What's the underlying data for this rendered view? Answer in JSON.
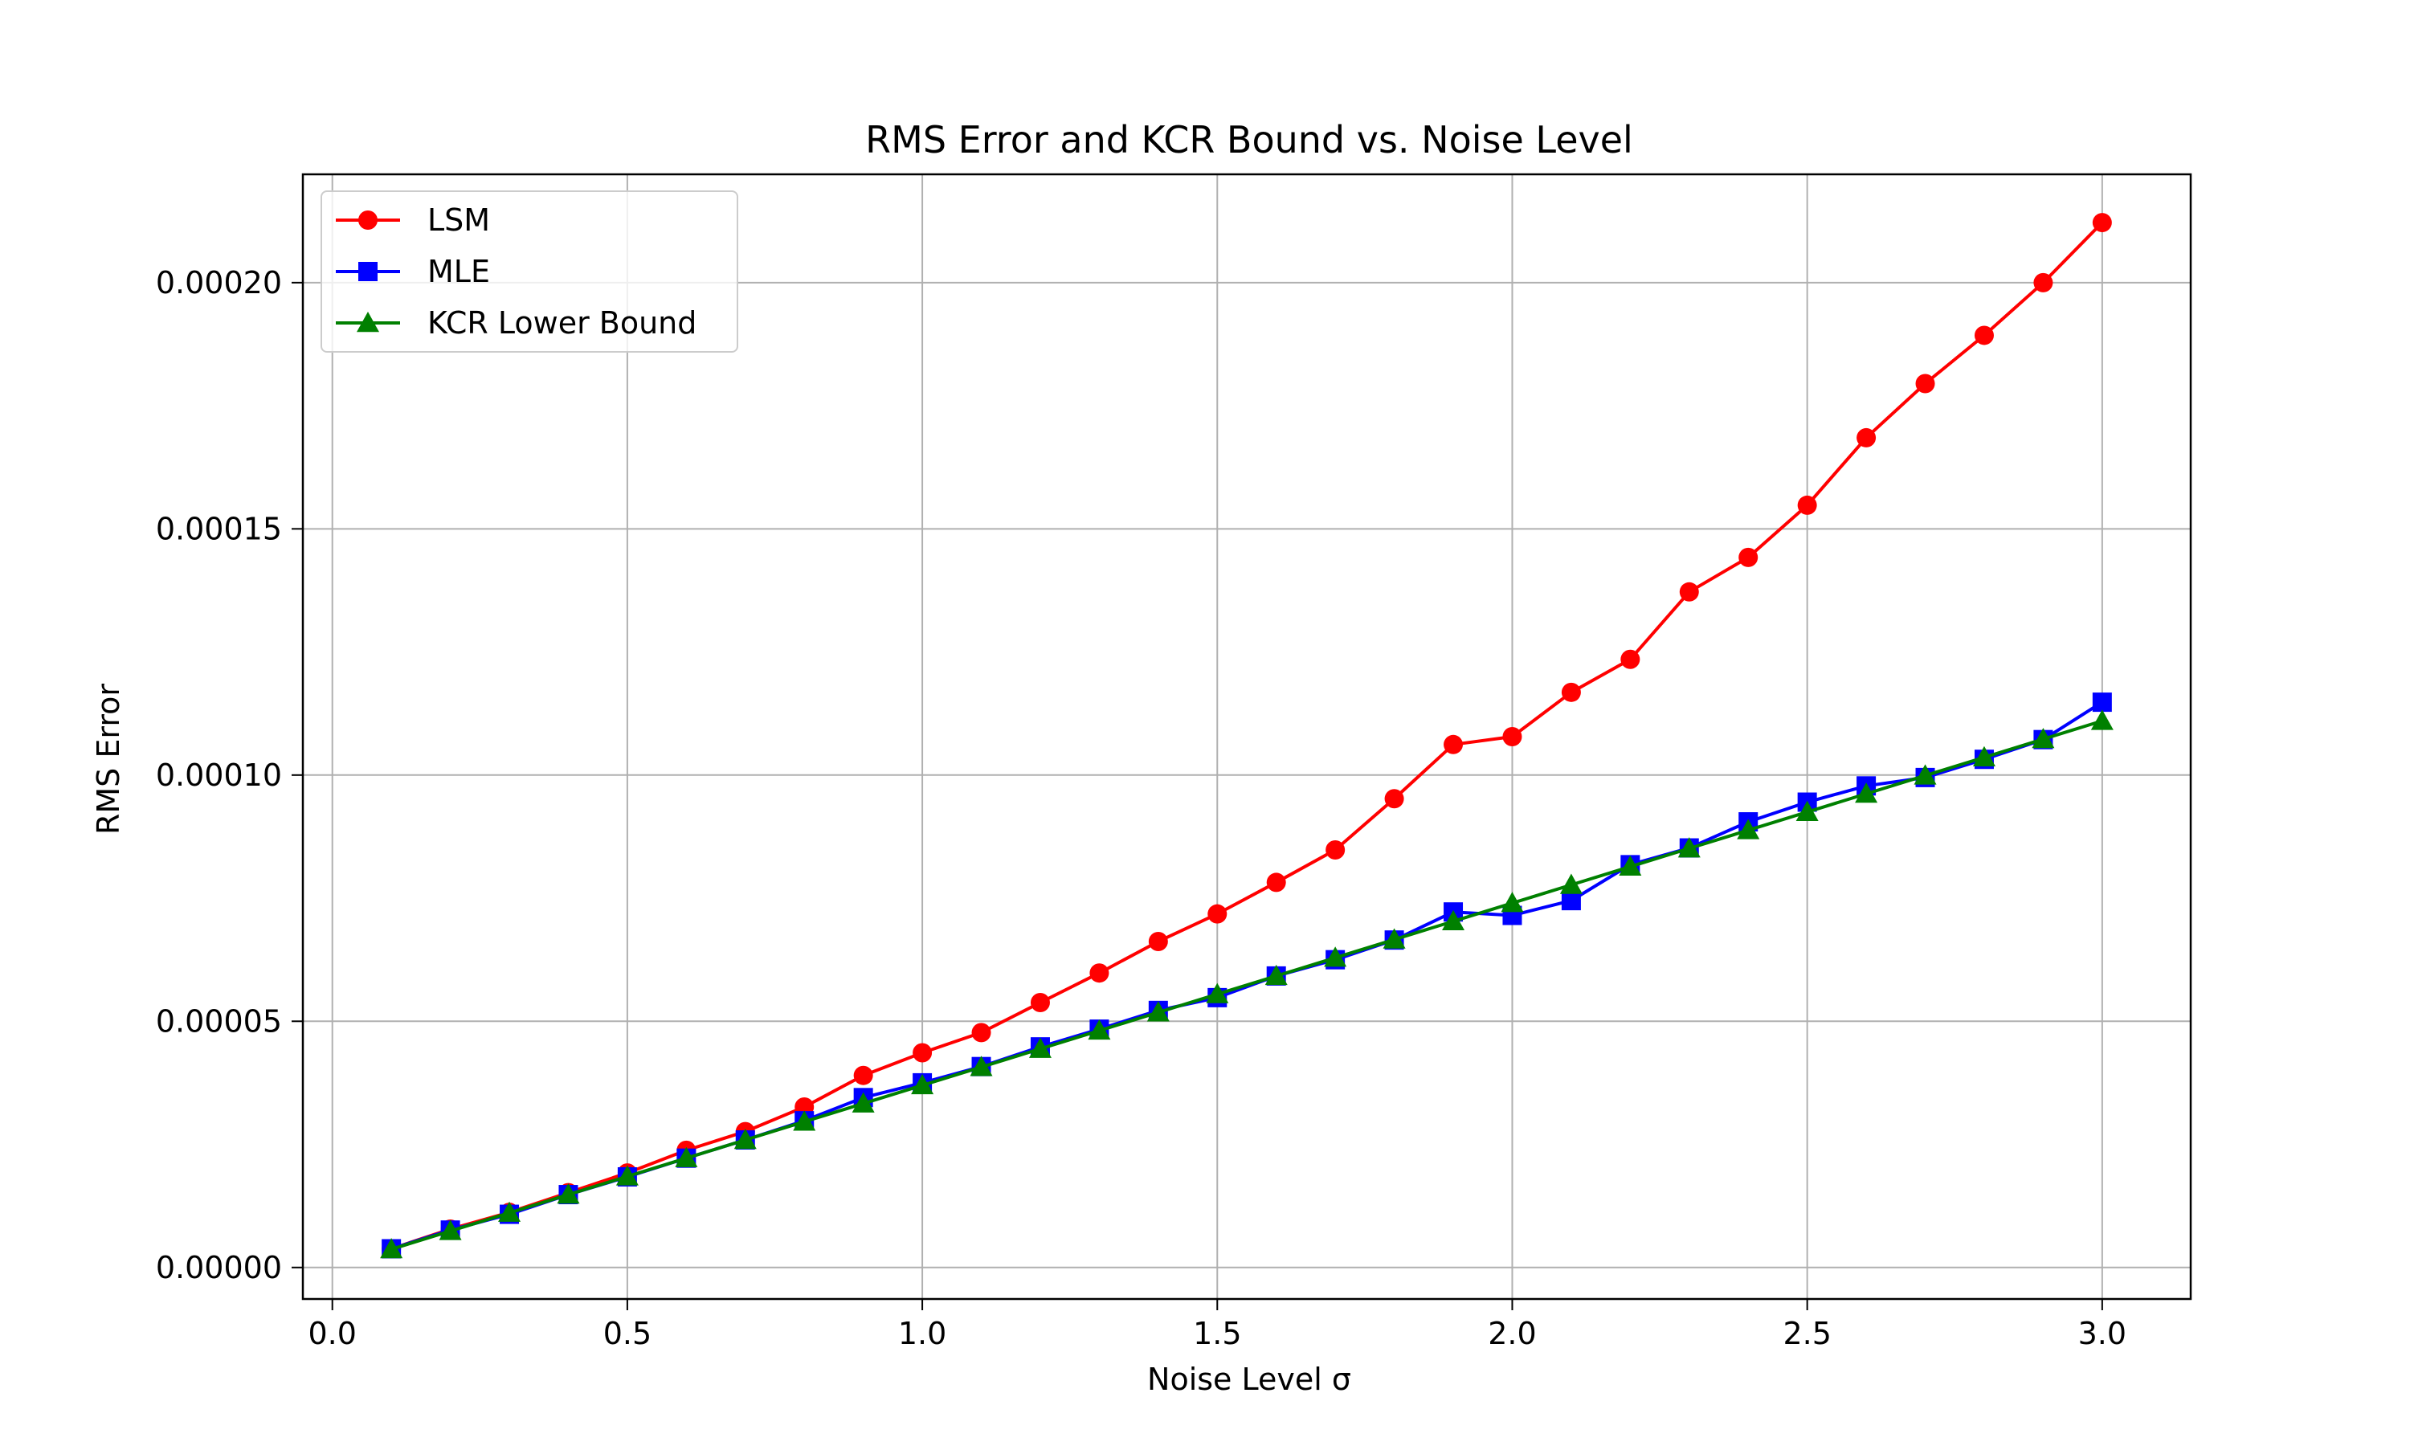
{
  "chart_data": {
    "type": "line",
    "title": "RMS Error and KCR Bound vs. Noise Level",
    "xlabel": "Noise Level σ",
    "ylabel": "RMS Error",
    "xlim": [
      -0.05,
      3.15
    ],
    "ylim": [
      -6.4e-06,
      0.000222
    ],
    "xticks": [
      0.0,
      0.5,
      1.0,
      1.5,
      2.0,
      2.5,
      3.0
    ],
    "xtick_labels": [
      "0.0",
      "0.5",
      "1.0",
      "1.5",
      "2.0",
      "2.5",
      "3.0"
    ],
    "yticks": [
      0.0,
      5e-05,
      0.0001,
      0.00015,
      0.0002
    ],
    "ytick_labels": [
      "0.00000",
      "0.00005",
      "0.00010",
      "0.00015",
      "0.00020"
    ],
    "grid": true,
    "legend_position": "top-left",
    "x": [
      0.1,
      0.2,
      0.3,
      0.4,
      0.5,
      0.6,
      0.7,
      0.8,
      0.9,
      1.0,
      1.1,
      1.2,
      1.3,
      1.4,
      1.5,
      1.6,
      1.7,
      1.8,
      1.9,
      2.0,
      2.1,
      2.2,
      2.3,
      2.4,
      2.5,
      2.6,
      2.7,
      2.8,
      2.9,
      3.0
    ],
    "series": [
      {
        "name": "LSM",
        "color": "#ff0000",
        "marker": "circle",
        "values": [
          3.8e-06,
          7.8e-06,
          1.12e-05,
          1.52e-05,
          1.92e-05,
          2.38e-05,
          2.76e-05,
          3.26e-05,
          3.9e-05,
          4.36e-05,
          4.77e-05,
          5.38e-05,
          5.98e-05,
          6.62e-05,
          7.18e-05,
          7.82e-05,
          8.48e-05,
          9.52e-05,
          0.0001062,
          0.0001078,
          0.0001168,
          0.0001235,
          0.0001372,
          0.0001442,
          0.0001548,
          0.0001685,
          0.0001795,
          0.0001893,
          0.0002,
          0.0002122
        ]
      },
      {
        "name": "MLE",
        "color": "#0000ff",
        "marker": "square",
        "values": [
          3.8e-06,
          7.6e-06,
          1.08e-05,
          1.48e-05,
          1.84e-05,
          2.22e-05,
          2.59e-05,
          2.98e-05,
          3.45e-05,
          3.75e-05,
          4.08e-05,
          4.48e-05,
          4.84e-05,
          5.22e-05,
          5.48e-05,
          5.92e-05,
          6.25e-05,
          6.65e-05,
          7.22e-05,
          7.15e-05,
          7.45e-05,
          8.18e-05,
          8.52e-05,
          9.05e-05,
          9.45e-05,
          9.78e-05,
          9.95e-05,
          0.0001032,
          0.0001072,
          0.0001148
        ]
      },
      {
        "name": "KCR Lower Bound",
        "color": "#008000",
        "marker": "triangle",
        "values": [
          3.7e-06,
          7.4e-06,
          1.11e-05,
          1.48e-05,
          1.85e-05,
          2.22e-05,
          2.59e-05,
          2.96e-05,
          3.33e-05,
          3.7e-05,
          4.07e-05,
          4.44e-05,
          4.81e-05,
          5.18e-05,
          5.55e-05,
          5.92e-05,
          6.29e-05,
          6.66e-05,
          7.03e-05,
          7.4e-05,
          7.77e-05,
          8.14e-05,
          8.51e-05,
          8.88e-05,
          9.25e-05,
          9.62e-05,
          9.99e-05,
          0.0001036,
          0.0001073,
          0.000111
        ]
      }
    ]
  }
}
